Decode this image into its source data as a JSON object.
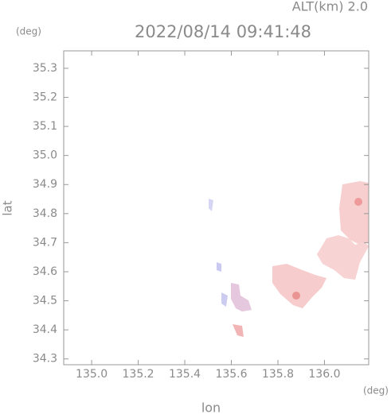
{
  "chart_data": {
    "type": "map",
    "title": "2022/08/14 09:41:48",
    "subtitle": "ALT(km) 2.0",
    "y_unit": "(deg)",
    "x_unit": "(deg)",
    "ylabel": "lat",
    "xlabel": "lon",
    "xlim": [
      134.88,
      136.19
    ],
    "ylim": [
      34.28,
      35.36
    ],
    "xticks": [
      {
        "value": 135,
        "label": "135.0"
      },
      135.2,
      135.4,
      135.6,
      135.8,
      {
        "value": 136,
        "label": "136.0"
      }
    ],
    "yticks": [
      34.3,
      34.4,
      34.5,
      34.6,
      34.7,
      34.8,
      34.9,
      {
        "value": 35,
        "label": "35.0"
      },
      35.1,
      35.2,
      35.3
    ]
  }
}
